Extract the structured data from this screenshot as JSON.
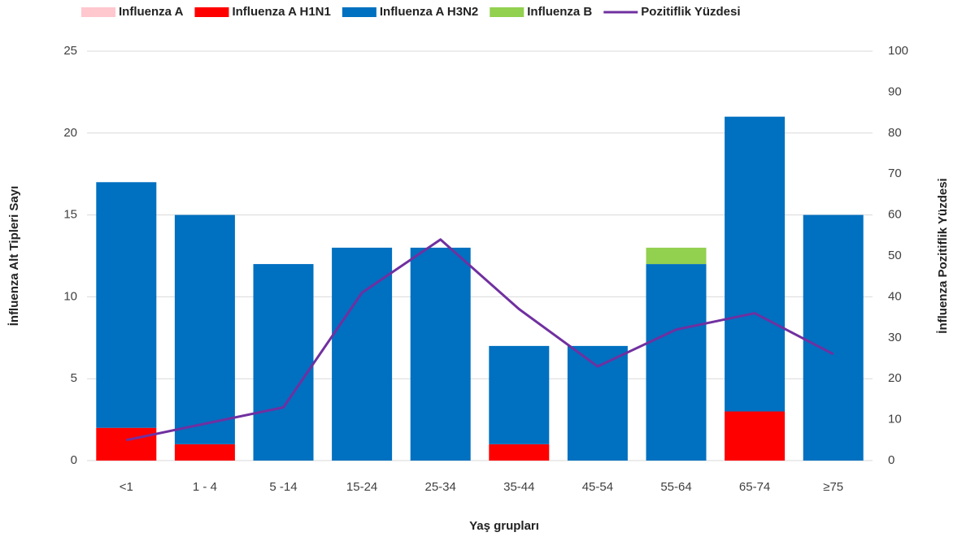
{
  "chart_data": {
    "type": "bar",
    "stacked": true,
    "x_label": "Yaş grupları",
    "y_label": "İnfluenza Alt Tipleri Sayı",
    "y2_label": "İnfluenza Pozitiflik Yüzdesi",
    "categories": [
      "<1",
      "1 - 4",
      "5 -14",
      "15-24",
      "25-34",
      "35-44",
      "45-54",
      "55-64",
      "65-74",
      "≥75"
    ],
    "series": [
      {
        "name": "Influenza A",
        "color": "#ffc7ce",
        "values": [
          0,
          0,
          0,
          0,
          0,
          0,
          0,
          0,
          0,
          0
        ]
      },
      {
        "name": "Influenza A H1N1",
        "color": "#ff0000",
        "values": [
          2,
          1,
          0,
          0,
          0,
          1,
          0,
          0,
          3,
          0
        ]
      },
      {
        "name": "Influenza A H3N2",
        "color": "#0070c0",
        "values": [
          15,
          14,
          12,
          13,
          13,
          6,
          7,
          12,
          18,
          15
        ]
      },
      {
        "name": "Influenza B",
        "color": "#92d050",
        "values": [
          0,
          0,
          0,
          0,
          0,
          0,
          0,
          1,
          0,
          0
        ]
      },
      {
        "name": "Pozitiflik Yüzdesi",
        "color": "#7030a0",
        "type": "line",
        "axis": "y2",
        "values": [
          5,
          9,
          13,
          41,
          54,
          37,
          23,
          32,
          36,
          26
        ]
      }
    ],
    "ylim": [
      0,
      25
    ],
    "yticks": [
      0,
      5,
      10,
      15,
      20,
      25
    ],
    "y2lim": [
      0,
      100
    ],
    "y2ticks": [
      0,
      10,
      20,
      30,
      40,
      50,
      60,
      70,
      80,
      90,
      100
    ],
    "grid": true,
    "legend": "top"
  }
}
